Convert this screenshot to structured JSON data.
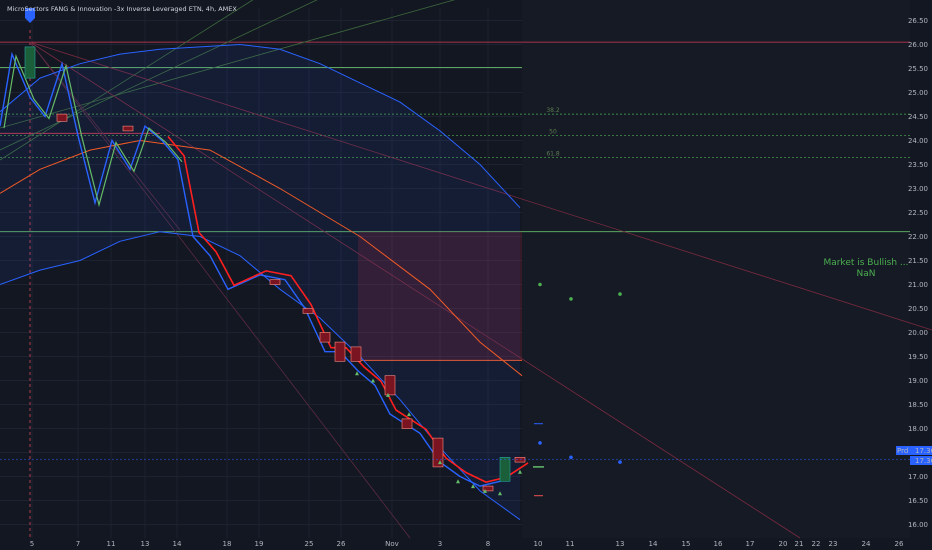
{
  "title": "MicroSectors FANG & Innovation -3x Inverse Leveraged ETN, 4h, AMEX",
  "colors": {
    "background": "#131722",
    "grid": "#1e2230",
    "up": "#26a69a",
    "down": "#ef5350",
    "band": "#2962ff",
    "ma": "#f05a28",
    "red_line": "#ff1f1f",
    "green_line": "#66bb6a"
  },
  "chart_data": {
    "type": "line",
    "y_ticks": [
      "26.50",
      "26.00",
      "25.50",
      "25.00",
      "24.50",
      "24.00",
      "23.50",
      "23.00",
      "22.50",
      "22.00",
      "21.50",
      "21.00",
      "20.50",
      "20.00",
      "19.50",
      "19.00",
      "18.50",
      "18.00",
      "17.50",
      "17.00",
      "16.50",
      "16.00"
    ],
    "x_ticks": [
      "5",
      "7",
      "11",
      "13",
      "14",
      "18",
      "19",
      "25",
      "26",
      "Nov",
      "3",
      "8",
      "10",
      "11",
      "13",
      "14",
      "15",
      "16",
      "17",
      "20",
      "21",
      "22",
      "23",
      "24",
      "26"
    ],
    "ylim": [
      15.8,
      26.8
    ],
    "fib_levels": [
      {
        "label": "38.2",
        "value": 24.55
      },
      {
        "label": "50",
        "value": 24.1
      },
      {
        "label": "61.8",
        "value": 23.65
      }
    ],
    "horizontal_levels": [
      26.05,
      25.52,
      24.15,
      22.1,
      19.42
    ],
    "price_path": [
      24.3,
      25.8,
      24.9,
      24.5,
      25.6,
      24.1,
      22.7,
      24.0,
      23.4,
      24.3,
      24.0,
      23.6,
      22.0,
      21.6,
      20.9,
      21.2,
      21.1,
      20.5,
      19.6,
      19.6,
      19.2,
      18.9,
      18.3,
      18.1,
      17.9,
      17.3,
      17.0,
      16.8,
      16.9,
      17.2
    ],
    "upper_band": [
      24.6,
      25.3,
      25.6,
      25.8,
      25.9,
      25.95,
      26.0,
      25.9,
      25.6,
      25.2,
      24.8,
      24.2,
      23.5,
      22.6
    ],
    "lower_band": [
      21.0,
      21.3,
      21.5,
      21.9,
      22.1,
      22.0,
      21.6,
      20.9,
      20.3,
      19.5,
      18.6,
      17.6,
      16.7,
      16.1
    ],
    "zone": {
      "top": 22.1,
      "bottom": 19.42
    },
    "last_price": "17.36",
    "second_price": "17.36",
    "price_tag_label": "Prd"
  },
  "signal": {
    "line1": "Market is Bullish ...",
    "line2": "NaN"
  }
}
